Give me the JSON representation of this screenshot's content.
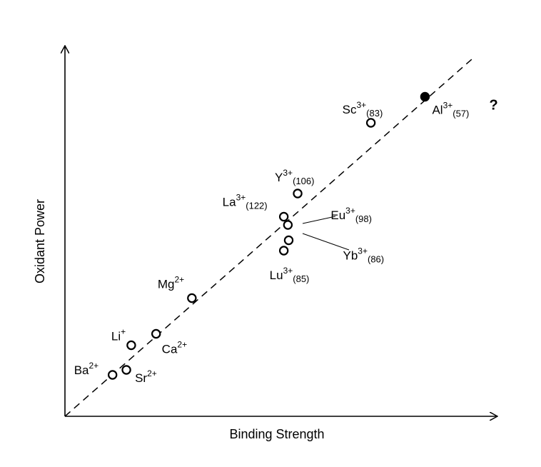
{
  "chart_data": {
    "type": "scatter",
    "title": "",
    "xlabel": "Binding Strength",
    "ylabel": "Oxidant Power",
    "xlim": [
      0,
      100
    ],
    "ylim": [
      0,
      100
    ],
    "grid": false,
    "legend": "none",
    "trendline": {
      "x": [
        0,
        100
      ],
      "y": [
        0,
        100
      ]
    },
    "points": [
      {
        "ion": "Ba",
        "charge": "2+",
        "radius": "",
        "x": 11.7,
        "y": 11.6,
        "filled": false
      },
      {
        "ion": "Sr",
        "charge": "2+",
        "radius": "",
        "x": 15.1,
        "y": 13.0,
        "filled": false
      },
      {
        "ion": "Li",
        "charge": "+",
        "radius": "",
        "x": 16.3,
        "y": 19.9,
        "filled": false
      },
      {
        "ion": "Ca",
        "charge": "2+",
        "radius": "",
        "x": 22.4,
        "y": 23.1,
        "filled": false
      },
      {
        "ion": "Mg",
        "charge": "2+",
        "radius": "",
        "x": 31.2,
        "y": 33.1,
        "filled": false
      },
      {
        "ion": "La",
        "charge": "3+",
        "radius": "(122)",
        "x": 53.8,
        "y": 55.9,
        "filled": false
      },
      {
        "ion": "Y",
        "charge": "3+",
        "radius": "(106)",
        "x": 57.2,
        "y": 62.4,
        "filled": false
      },
      {
        "ion": "Eu",
        "charge": "3+",
        "radius": "(98)",
        "x": 54.8,
        "y": 53.6,
        "filled": false
      },
      {
        "ion": "Yb",
        "charge": "3+",
        "radius": "(86)",
        "x": 55.0,
        "y": 49.3,
        "filled": false
      },
      {
        "ion": "Lu",
        "charge": "3+",
        "radius": "(85)",
        "x": 53.8,
        "y": 46.4,
        "filled": false
      },
      {
        "ion": "Sc",
        "charge": "3+",
        "radius": "(83)",
        "x": 75.2,
        "y": 82.2,
        "filled": false
      },
      {
        "ion": "Al",
        "charge": "3+",
        "radius": "(57)",
        "x": 88.5,
        "y": 89.5,
        "filled": true,
        "note": "?"
      }
    ]
  }
}
